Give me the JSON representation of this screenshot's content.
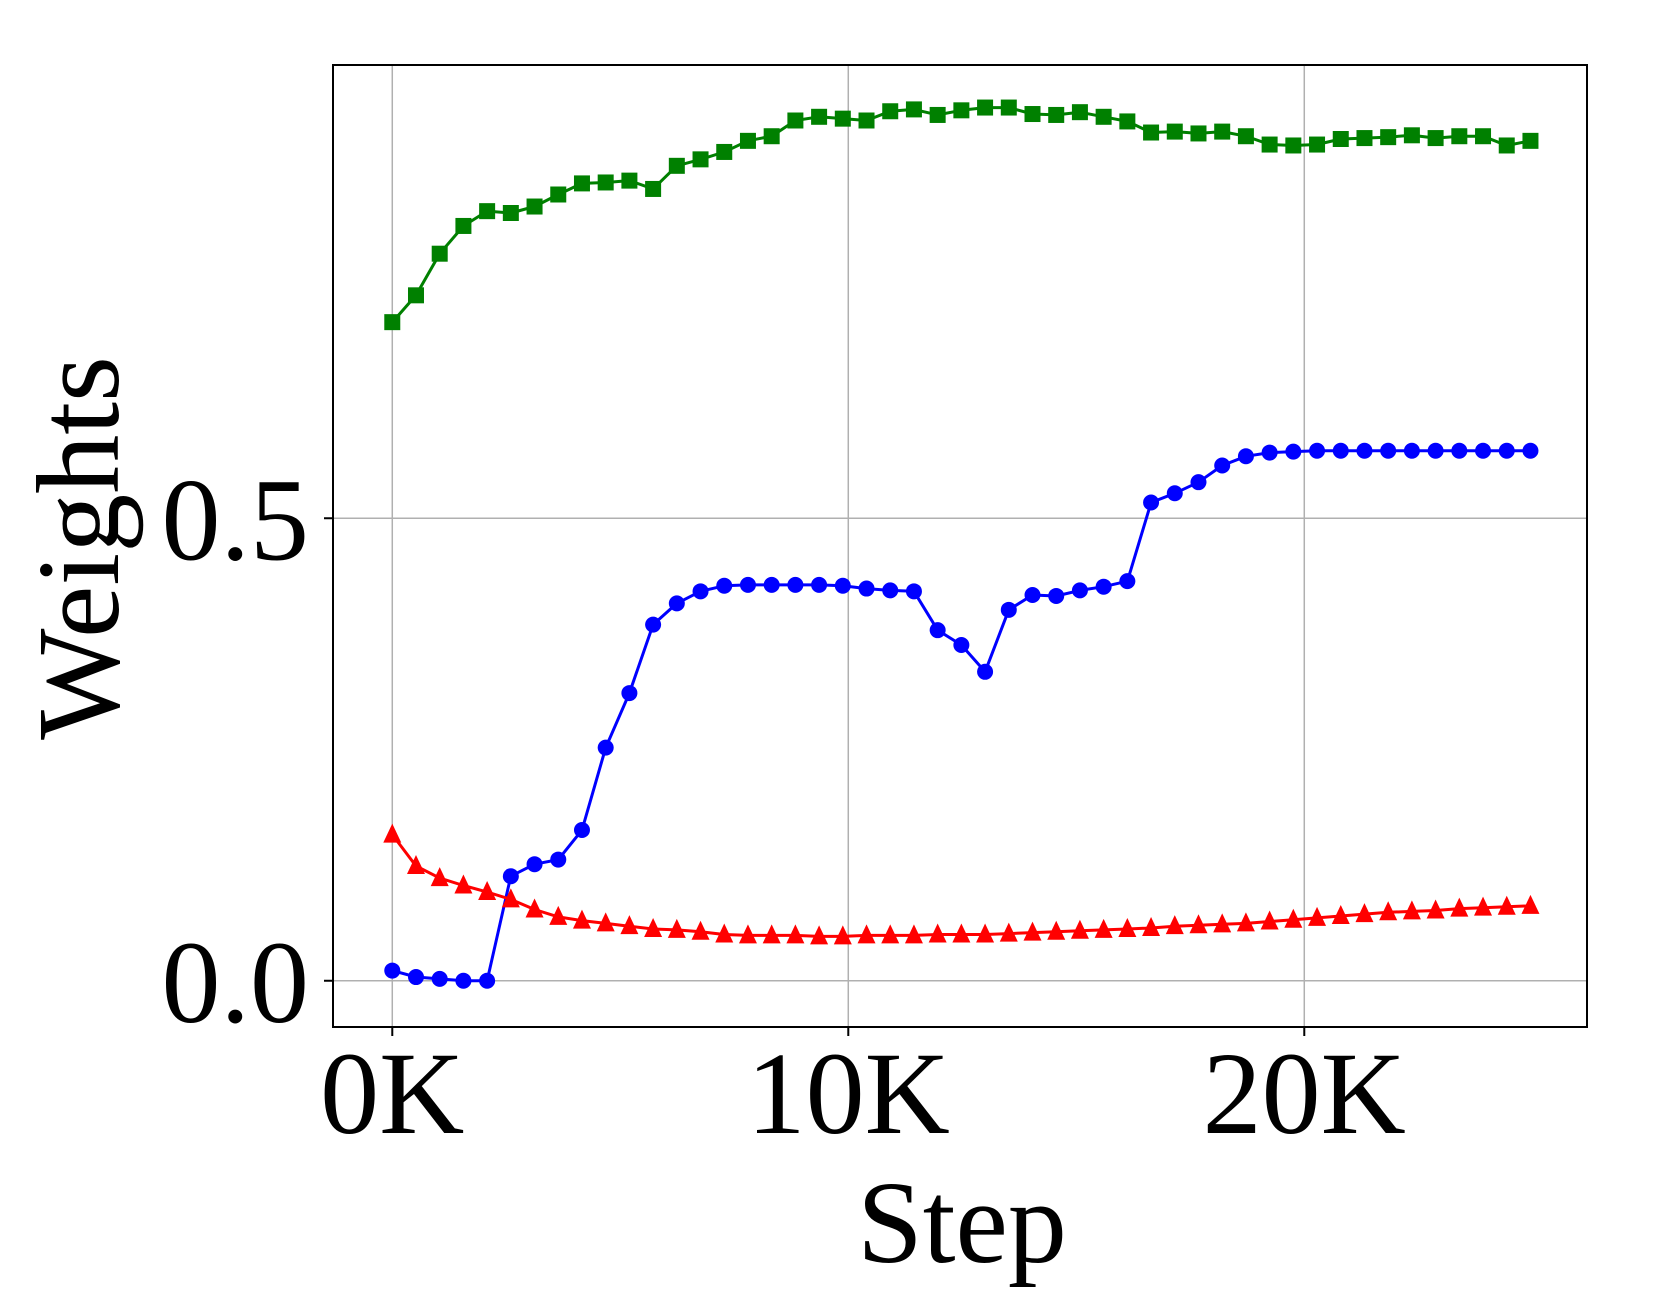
{
  "chart_data": {
    "type": "line",
    "xlabel": "Step",
    "ylabel": "Weights",
    "xlim": [
      -1300,
      26200
    ],
    "ylim": [
      -0.05,
      0.99
    ],
    "x_ticks": [
      {
        "value": 0,
        "label": "0K"
      },
      {
        "value": 10000,
        "label": "10K"
      },
      {
        "value": 20000,
        "label": "20K"
      }
    ],
    "y_ticks": [
      {
        "value": 0.0,
        "label": "0.0"
      },
      {
        "value": 0.5,
        "label": "0.5"
      }
    ],
    "grid": true,
    "x": [
      0,
      520,
      1040,
      1560,
      2080,
      2600,
      3120,
      3640,
      4160,
      4680,
      5200,
      5720,
      6240,
      6760,
      7280,
      7800,
      8320,
      8840,
      9360,
      9880,
      10400,
      10920,
      11440,
      11960,
      12480,
      13000,
      13520,
      14040,
      14560,
      15080,
      15600,
      16120,
      16640,
      17160,
      17680,
      18200,
      18720,
      19240,
      19760,
      20280,
      20800,
      21320,
      21840,
      22360,
      22880,
      23400,
      23920,
      24440,
      24960
    ],
    "series": [
      {
        "color": "#008000",
        "marker": "square",
        "values": [
          0.712,
          0.741,
          0.786,
          0.816,
          0.832,
          0.83,
          0.837,
          0.85,
          0.862,
          0.863,
          0.865,
          0.856,
          0.881,
          0.888,
          0.896,
          0.908,
          0.913,
          0.93,
          0.934,
          0.932,
          0.93,
          0.94,
          0.942,
          0.936,
          0.941,
          0.944,
          0.944,
          0.937,
          0.936,
          0.939,
          0.934,
          0.929,
          0.917,
          0.918,
          0.916,
          0.918,
          0.913,
          0.904,
          0.903,
          0.904,
          0.91,
          0.911,
          0.912,
          0.914,
          0.911,
          0.913,
          0.913,
          0.903,
          0.908
        ]
      },
      {
        "color": "#0000ff",
        "marker": "circle",
        "values": [
          0.011,
          0.004,
          0.002,
          0.0,
          0.0,
          0.113,
          0.126,
          0.131,
          0.163,
          0.252,
          0.311,
          0.385,
          0.408,
          0.421,
          0.427,
          0.428,
          0.428,
          0.428,
          0.428,
          0.427,
          0.424,
          0.422,
          0.421,
          0.379,
          0.363,
          0.334,
          0.401,
          0.417,
          0.416,
          0.422,
          0.426,
          0.432,
          0.517,
          0.527,
          0.539,
          0.557,
          0.567,
          0.571,
          0.572,
          0.573,
          0.573,
          0.573,
          0.573,
          0.573,
          0.573,
          0.573,
          0.573,
          0.573,
          0.573
        ]
      },
      {
        "color": "#ff0000",
        "marker": "triangle",
        "values": [
          0.158,
          0.124,
          0.111,
          0.103,
          0.096,
          0.088,
          0.077,
          0.069,
          0.065,
          0.062,
          0.059,
          0.056,
          0.055,
          0.053,
          0.05,
          0.049,
          0.049,
          0.049,
          0.048,
          0.048,
          0.049,
          0.049,
          0.049,
          0.05,
          0.05,
          0.05,
          0.051,
          0.052,
          0.053,
          0.054,
          0.055,
          0.056,
          0.057,
          0.059,
          0.06,
          0.061,
          0.062,
          0.064,
          0.066,
          0.068,
          0.07,
          0.072,
          0.074,
          0.075,
          0.076,
          0.078,
          0.079,
          0.08,
          0.081
        ]
      }
    ]
  }
}
